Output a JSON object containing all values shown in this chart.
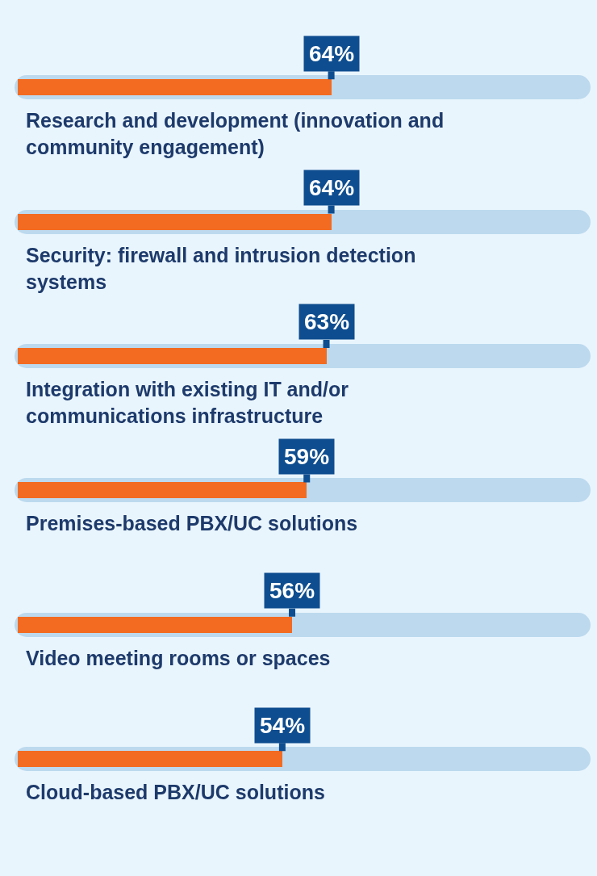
{
  "chart_data": {
    "type": "bar",
    "orientation": "horizontal",
    "categories": [
      "Research and development (innovation and community engagement)",
      "Security: firewall and intrusion detection systems",
      "Integration with existing IT and/or communications infrastructure",
      "Premises-based PBX/UC solutions",
      "Video meeting rooms or spaces",
      "Cloud-based PBX/UC solutions"
    ],
    "values": [
      64,
      64,
      63,
      59,
      56,
      54
    ],
    "value_labels": [
      "64%",
      "64%",
      "63%",
      "59%",
      "56%",
      "54%"
    ],
    "color": "#f26b21"
  }
}
